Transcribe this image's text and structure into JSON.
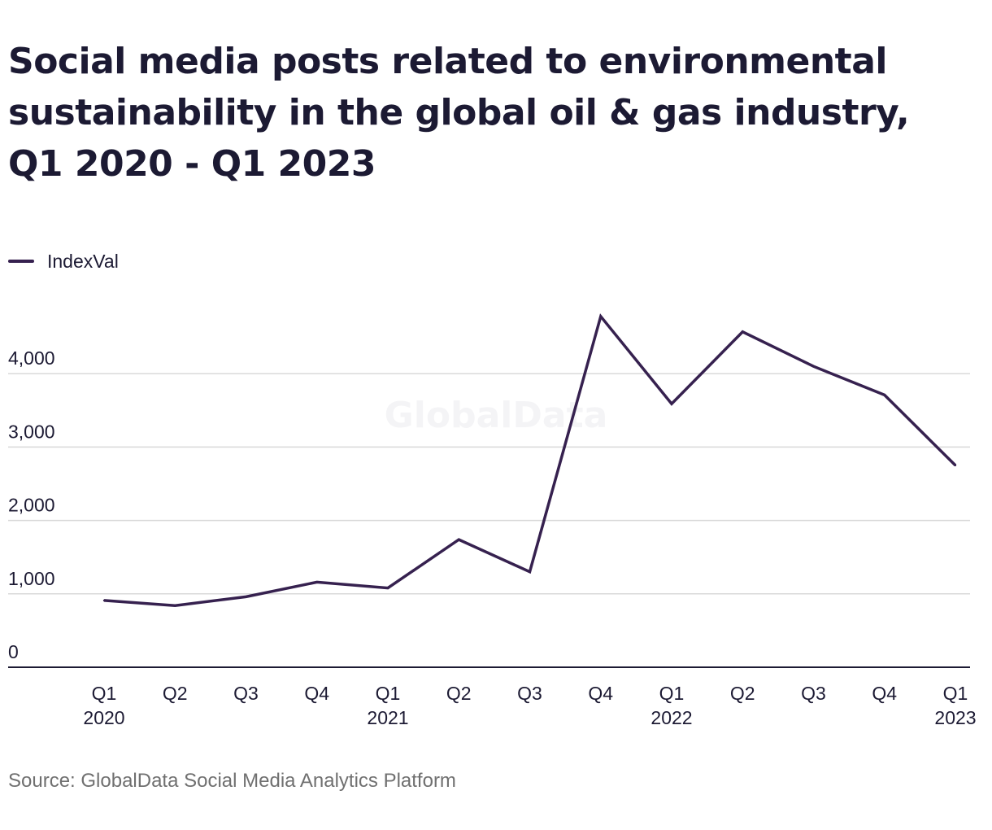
{
  "title": "Social media posts related to environmental sustainability in the global oil & gas industry, Q1 2020 - Q1 2023",
  "source": "Source: GlobalData Social Media Analytics Platform",
  "watermark": "GlobalData",
  "colors": {
    "series": "#36214f",
    "grid": "#d9d9d9",
    "axis": "#1c1a33",
    "text": "#1c1a33",
    "source_text": "#707070"
  },
  "chart_data": {
    "type": "line",
    "title": "Social media posts related to environmental sustainability in the global oil & gas industry, Q1 2020 - Q1 2023",
    "xlabel": "",
    "ylabel": "",
    "ylim": [
      0,
      4000
    ],
    "yticks": [
      0,
      1000,
      2000,
      3000,
      4000
    ],
    "ytick_labels": [
      "0",
      "1,000",
      "2,000",
      "3,000",
      "4,000"
    ],
    "grid": true,
    "legend_position": "top-left",
    "categories": [
      [
        "Q1",
        "2020"
      ],
      [
        "Q2"
      ],
      [
        "Q3"
      ],
      [
        "Q4"
      ],
      [
        "Q1",
        "2021"
      ],
      [
        "Q2"
      ],
      [
        "Q3"
      ],
      [
        "Q4"
      ],
      [
        "Q1",
        "2022"
      ],
      [
        "Q2"
      ],
      [
        "Q3"
      ],
      [
        "Q4"
      ],
      [
        "Q1",
        "2023"
      ]
    ],
    "series": [
      {
        "name": "IndexVal",
        "values": [
          910,
          840,
          960,
          1160,
          1080,
          1740,
          1300,
          4780,
          3590,
          4570,
          4100,
          3710,
          2750
        ]
      }
    ]
  }
}
